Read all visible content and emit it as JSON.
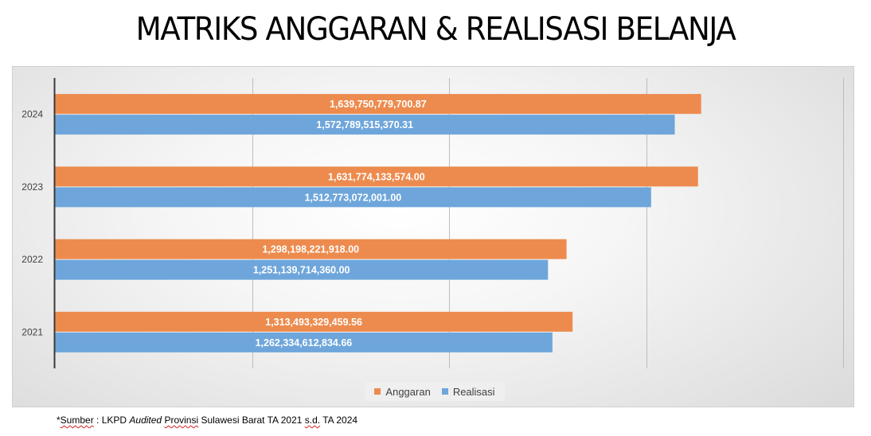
{
  "slide": {
    "title": "MATRIKS ANGGARAN & REALISASI BELANJA"
  },
  "colors": {
    "anggaran": "#ED8B4E",
    "realisasi": "#6EA6DB",
    "axis": "#3a3a3a",
    "grid": "#bdbdbd",
    "label_text": "#ffffff"
  },
  "chart_data": {
    "type": "bar",
    "orientation": "horizontal",
    "categories": [
      "2024",
      "2023",
      "2022",
      "2021"
    ],
    "series": [
      {
        "name": "Anggaran",
        "values": [
          1639750779700.87,
          1631774133574.0,
          1298198221918.0,
          1313493329459.56
        ],
        "labels": [
          "1,639,750,779,700.87",
          "1,631,774,133,574.00",
          "1,298,198,221,918.00",
          "1,313,493,329,459.56"
        ]
      },
      {
        "name": "Realisasi",
        "values": [
          1572789515370.31,
          1512773072001.0,
          1251139714360.0,
          1262334612834.66
        ],
        "labels": [
          "1,572,789,515,370.31",
          "1,512,773,072,001.00",
          "1,251,139,714,360.00",
          "1,262,334,612,834.66"
        ]
      }
    ],
    "xlim": [
      0,
      2000000000000
    ],
    "grid": true,
    "legend_position": "bottom",
    "xlabel": "",
    "ylabel": ""
  },
  "legend": {
    "anggaran_label": "Anggaran",
    "realisasi_label": "Realisasi"
  },
  "source": {
    "prefix": "*",
    "sumber_word": "Sumber",
    "colon": " : LKPD ",
    "audited_word": "Audited",
    "space1": " ",
    "provinsi_word": "Provinsi",
    "rest1": " Sulawesi Barat TA 2021 ",
    "sd_word": "s.d.",
    "rest2": " TA 2024"
  }
}
